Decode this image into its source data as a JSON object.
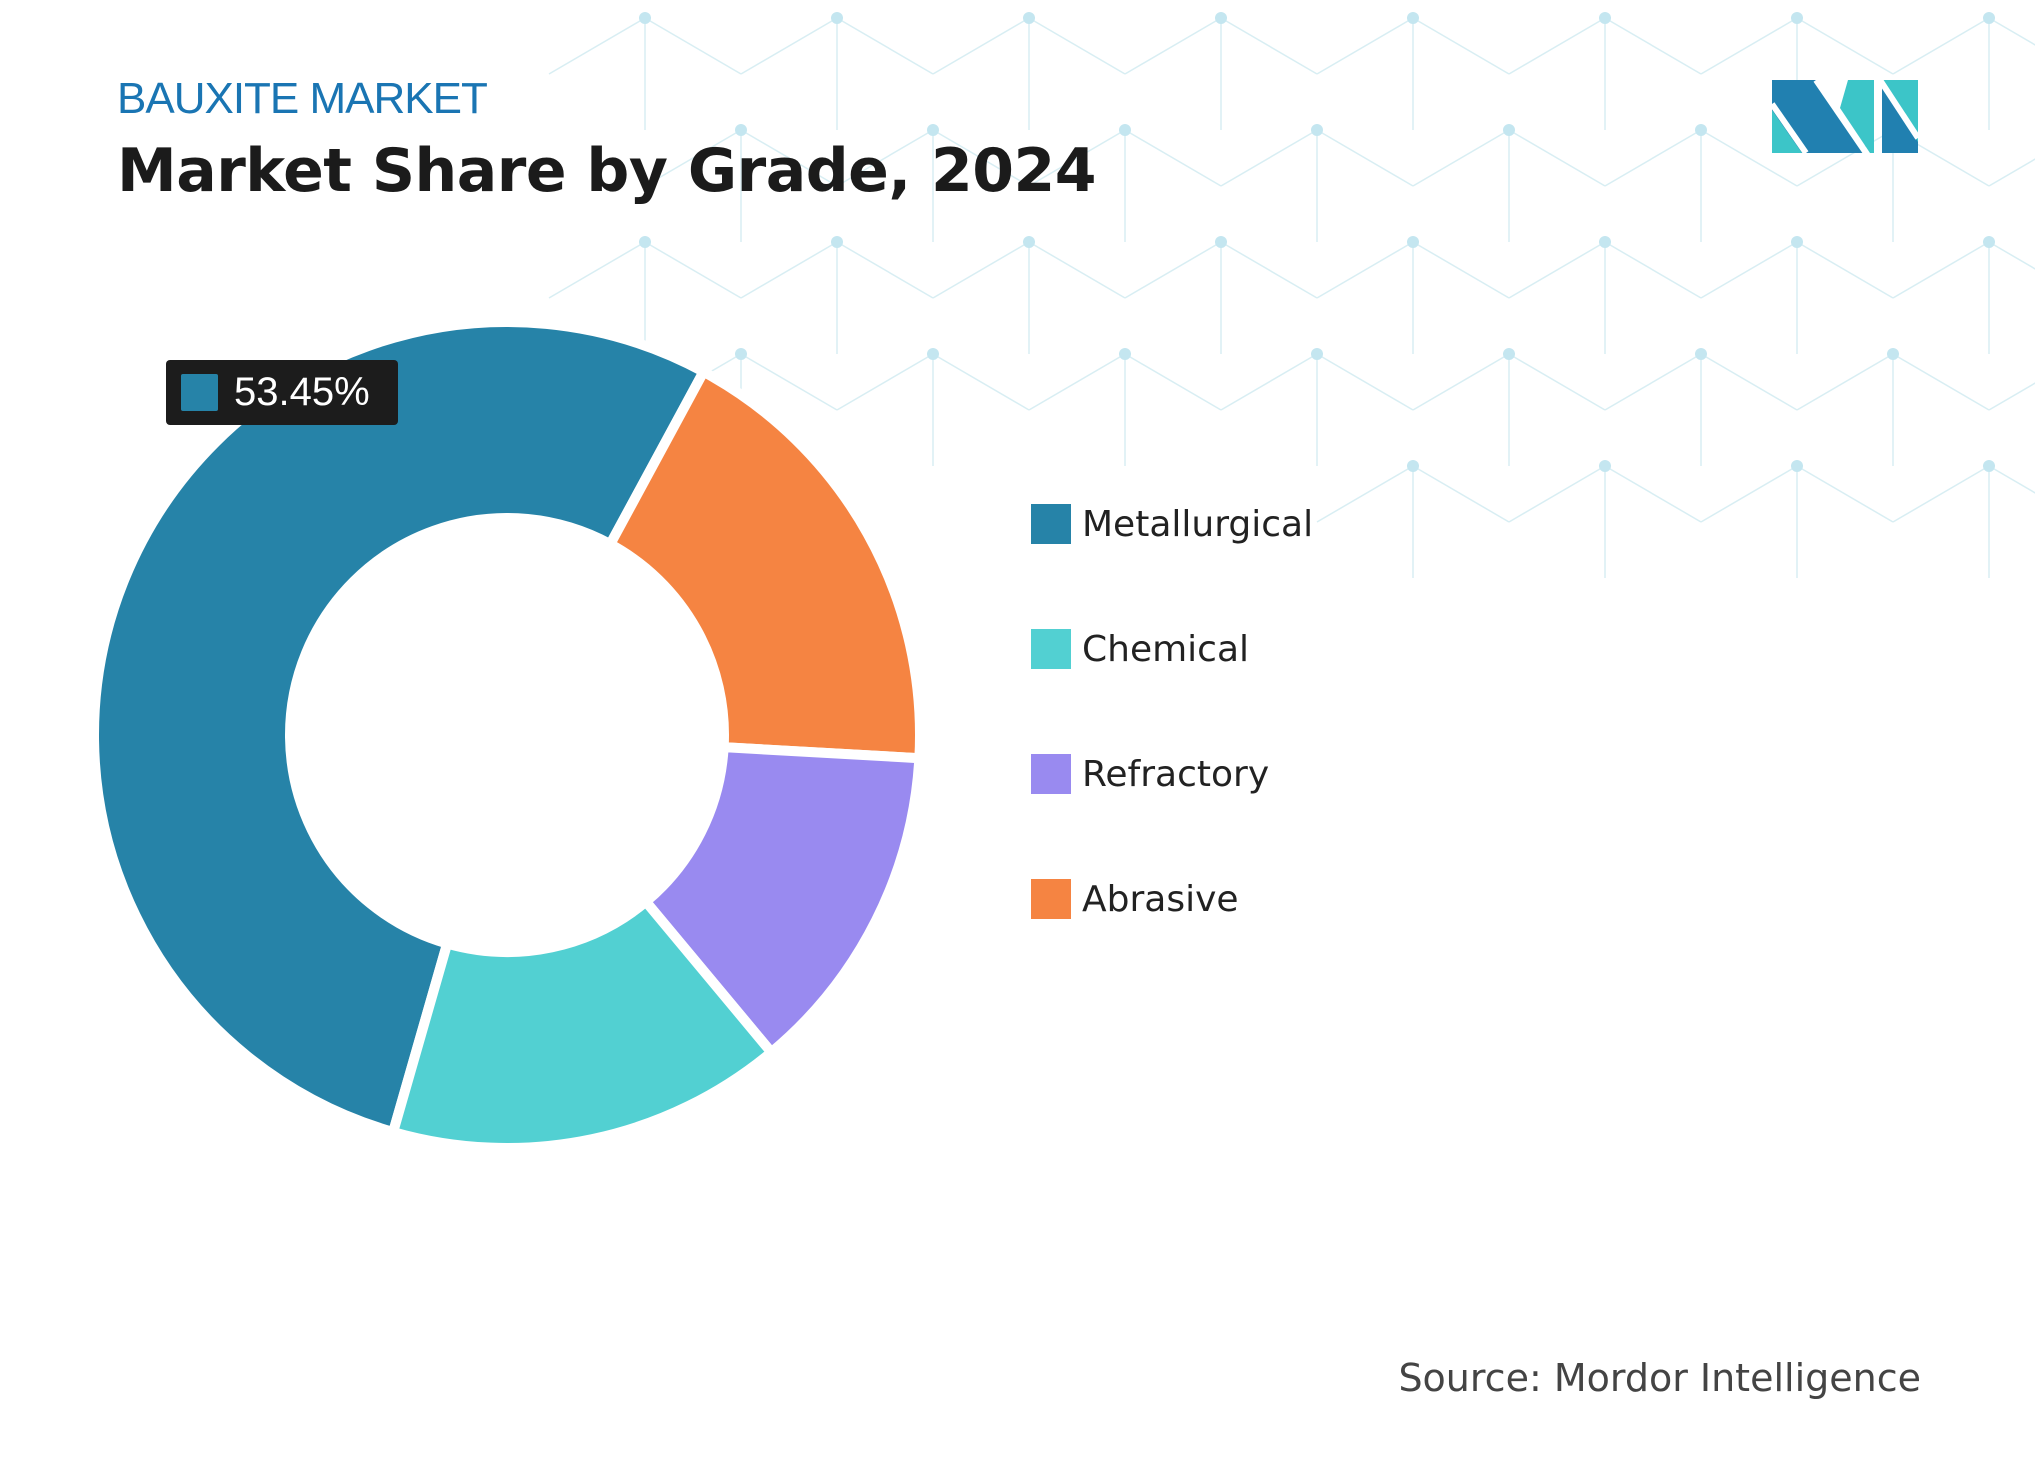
{
  "header": {
    "subtitle": "BAUXITE MARKET",
    "title": "Market Share by Grade, 2024"
  },
  "chart_data": {
    "type": "pie",
    "style": "donut",
    "categories": [
      "Metallurgical",
      "Abrasive",
      "Refractory",
      "Chemical"
    ],
    "values": [
      53.45,
      18.0,
      13.05,
      15.5
    ],
    "colors": [
      "#2683a8",
      "#f58442",
      "#998af0",
      "#52d0d2"
    ],
    "data_label": {
      "category": "Metallurgical",
      "text": "53.45%"
    },
    "legend_placement": "right",
    "legend": [
      {
        "label": "Metallurgical",
        "color": "#2683a8"
      },
      {
        "label": "Chemical",
        "color": "#52d0d2"
      },
      {
        "label": "Refractory",
        "color": "#998af0"
      },
      {
        "label": "Abrasive",
        "color": "#f58442"
      }
    ]
  },
  "footer": {
    "source": "Source: Mordor Intelligence"
  },
  "logo": {
    "colors": [
      "#2180b0",
      "#3cc5c8"
    ]
  }
}
